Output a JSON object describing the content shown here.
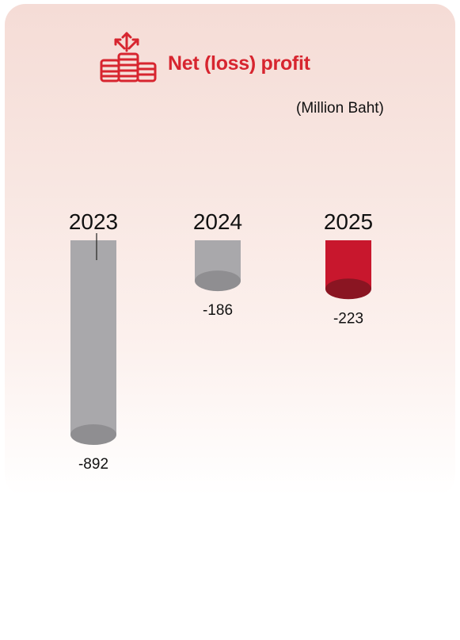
{
  "header": {
    "title": "Net (loss) profit",
    "icon": "coins-with-arrows-icon",
    "unit_label": "(Million Baht)"
  },
  "colors": {
    "accent": "#d7252f",
    "bar_gray": "#a9a8ab",
    "bar_gray_bottom": "#8f8e91",
    "bar_red": "#c8172d",
    "bar_red_bottom": "#8a1522"
  },
  "chart_data": {
    "type": "bar",
    "categories": [
      "2023",
      "2024",
      "2025"
    ],
    "values": [
      -892,
      -186,
      -223
    ],
    "value_labels": [
      "-892",
      "-186",
      "-223"
    ],
    "highlight_index": 2,
    "ylim": [
      -892,
      0
    ],
    "xlabel": "",
    "ylabel": "(Million Baht)",
    "grid": false,
    "legend": "none"
  }
}
